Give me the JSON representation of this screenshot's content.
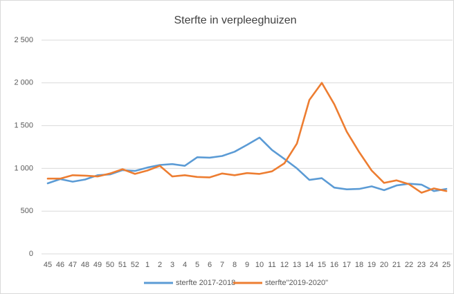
{
  "chart_data": {
    "type": "line",
    "title": "Sterfte in verpleeghuizen",
    "categories": [
      "45",
      "46",
      "47",
      "48",
      "49",
      "50",
      "51",
      "52",
      "1",
      "2",
      "3",
      "4",
      "5",
      "6",
      "7",
      "8",
      "9",
      "10",
      "11",
      "12",
      "13",
      "14",
      "15",
      "16",
      "17",
      "18",
      "19",
      "20",
      "21",
      "22",
      "23",
      "24",
      "25"
    ],
    "series": [
      {
        "name": "sterfte 2017-2018",
        "color": "#5b9bd5",
        "values": [
          825,
          875,
          845,
          870,
          920,
          930,
          980,
          970,
          1010,
          1040,
          1050,
          1030,
          1130,
          1125,
          1145,
          1195,
          1275,
          1360,
          1215,
          1110,
          1000,
          865,
          885,
          775,
          755,
          760,
          790,
          745,
          800,
          820,
          810,
          735,
          760
        ]
      },
      {
        "name": "sterfte\"2019-2020\"",
        "color": "#ed7d31",
        "values": [
          880,
          880,
          920,
          915,
          905,
          940,
          990,
          935,
          975,
          1030,
          905,
          920,
          900,
          895,
          940,
          920,
          945,
          935,
          965,
          1060,
          1290,
          1800,
          2000,
          1750,
          1430,
          1190,
          975,
          830,
          860,
          815,
          715,
          765,
          735
        ]
      }
    ],
    "ylim": [
      0,
      2500
    ],
    "yticks": [
      0,
      500,
      {
        "value": 1000,
        "label": "1 000"
      },
      {
        "value": 1500,
        "label": "1 500"
      },
      {
        "value": 2000,
        "label": "2 000"
      },
      {
        "value": 2500,
        "label": "2 500"
      }
    ],
    "grid": true,
    "legend": "bottom"
  }
}
